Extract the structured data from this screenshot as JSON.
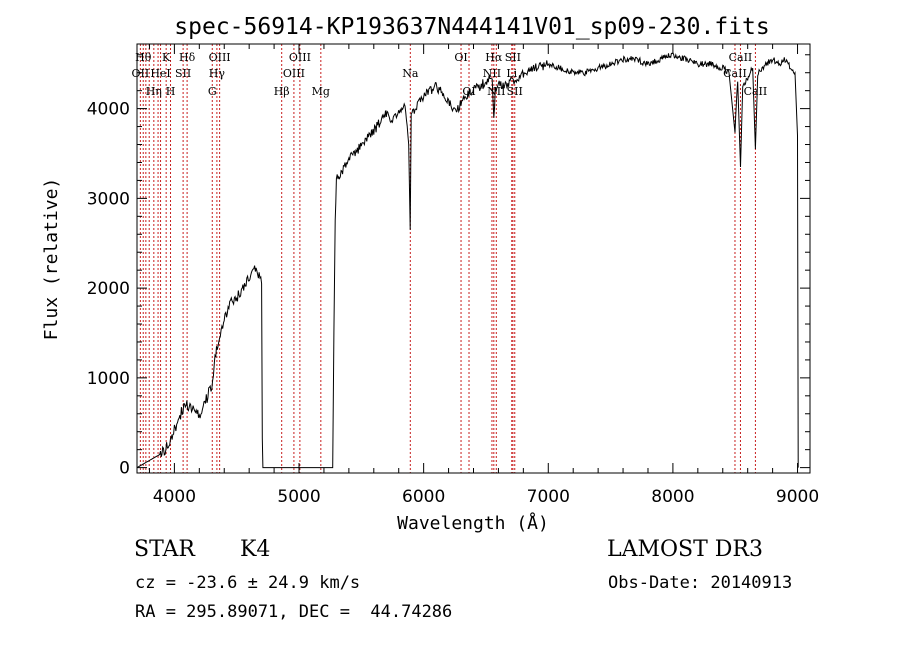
{
  "chart_data": {
    "type": "line",
    "title": "spec-56914-KP193637N444141V01_sp09-230.fits",
    "xlabel": "Wavelength (Å)",
    "ylabel": "Flux (relative)",
    "xlim": [
      3700,
      9100
    ],
    "ylim": [
      -60,
      4720
    ],
    "x_ticks": [
      4000,
      5000,
      6000,
      7000,
      8000,
      9000
    ],
    "y_ticks": [
      0,
      1000,
      2000,
      3000,
      4000
    ],
    "x_minor_step": 200,
    "y_minor_step": 200,
    "grid": false,
    "series": [
      {
        "line_color": "#000000",
        "x": [
          3700,
          3800,
          3900,
          3950,
          4000,
          4050,
          4100,
          4150,
          4200,
          4250,
          4300,
          4320,
          4350,
          4400,
          4450,
          4500,
          4550,
          4600,
          4650,
          4680,
          4700,
          4705,
          4710,
          5270,
          5280,
          5290,
          5300,
          5350,
          5400,
          5450,
          5500,
          5550,
          5600,
          5650,
          5700,
          5750,
          5800,
          5850,
          5880,
          5892,
          5900,
          5950,
          6000,
          6100,
          6200,
          6250,
          6300,
          6350,
          6400,
          6450,
          6500,
          6550,
          6563,
          6575,
          6600,
          6650,
          6700,
          6750,
          6800,
          6900,
          7000,
          7100,
          7200,
          7300,
          7400,
          7500,
          7600,
          7700,
          7800,
          7900,
          8000,
          8100,
          8200,
          8300,
          8400,
          8450,
          8498,
          8520,
          8542,
          8560,
          8600,
          8640,
          8662,
          8680,
          8750,
          8800,
          8850,
          8900,
          8950,
          8980,
          9000,
          9005
        ],
        "y": [
          0,
          80,
          160,
          260,
          420,
          600,
          700,
          650,
          560,
          750,
          900,
          1150,
          1400,
          1650,
          1850,
          1900,
          2000,
          2100,
          2200,
          2150,
          2050,
          300,
          0,
          0,
          1500,
          2700,
          3200,
          3300,
          3450,
          3500,
          3600,
          3700,
          3750,
          3850,
          3950,
          3850,
          3950,
          4050,
          3600,
          2650,
          3900,
          4050,
          4150,
          4250,
          4100,
          3950,
          4050,
          4150,
          4200,
          4250,
          4300,
          4350,
          3850,
          4200,
          4300,
          4250,
          4300,
          4350,
          4400,
          4450,
          4500,
          4450,
          4400,
          4400,
          4450,
          4500,
          4550,
          4550,
          4500,
          4550,
          4600,
          4550,
          4500,
          4500,
          4450,
          4400,
          3750,
          4300,
          3350,
          4250,
          4350,
          4450,
          3550,
          4400,
          4500,
          4550,
          4500,
          4550,
          4450,
          4400,
          3700,
          0
        ]
      }
    ],
    "line_markers": {
      "color": "#c81e1e",
      "lines": [
        {
          "wavelength": 3727,
          "label": "OII",
          "row": 2
        },
        {
          "wavelength": 3750,
          "label": "Hθ",
          "row": 1
        },
        {
          "wavelength": 3771,
          "label": "",
          "row": 0
        },
        {
          "wavelength": 3798,
          "label": "",
          "row": 0
        },
        {
          "wavelength": 3835,
          "label": "Hη",
          "row": 3
        },
        {
          "wavelength": 3869,
          "label": "",
          "row": 0
        },
        {
          "wavelength": 3889,
          "label": "HeI",
          "row": 2
        },
        {
          "wavelength": 3934,
          "label": "K",
          "row": 1
        },
        {
          "wavelength": 3969,
          "label": "H",
          "row": 3
        },
        {
          "wavelength": 4070,
          "label": "SII",
          "row": 2
        },
        {
          "wavelength": 4102,
          "label": "Hδ",
          "row": 1
        },
        {
          "wavelength": 4304,
          "label": "G",
          "row": 3
        },
        {
          "wavelength": 4341,
          "label": "Hγ",
          "row": 2
        },
        {
          "wavelength": 4363,
          "label": "OIII",
          "row": 1
        },
        {
          "wavelength": 4861,
          "label": "Hβ",
          "row": 3
        },
        {
          "wavelength": 4959,
          "label": "OIII",
          "row": 2
        },
        {
          "wavelength": 5007,
          "label": "OIII",
          "row": 1
        },
        {
          "wavelength": 5175,
          "label": "Mg",
          "row": 3
        },
        {
          "wavelength": 5893,
          "label": "Na",
          "row": 2
        },
        {
          "wavelength": 6300,
          "label": "OI",
          "row": 1
        },
        {
          "wavelength": 6364,
          "label": "OI",
          "row": 3
        },
        {
          "wavelength": 6548,
          "label": "NII",
          "row": 2
        },
        {
          "wavelength": 6563,
          "label": "Hα",
          "row": 1
        },
        {
          "wavelength": 6583,
          "label": "NII",
          "row": 3
        },
        {
          "wavelength": 6707,
          "label": "Li",
          "row": 2
        },
        {
          "wavelength": 6716,
          "label": "SII",
          "row": 1
        },
        {
          "wavelength": 6731,
          "label": "SII",
          "row": 3
        },
        {
          "wavelength": 8498,
          "label": "CaII",
          "row": 2
        },
        {
          "wavelength": 8542,
          "label": "CaII",
          "row": 1
        },
        {
          "wavelength": 8662,
          "label": "CaII",
          "row": 3
        }
      ]
    }
  },
  "info": {
    "object_class": "STAR",
    "subclass": "K4",
    "cz": "cz = -23.6 ± 24.9 km/s",
    "coords": "RA = 295.89071, DEC =  44.74286",
    "survey": "LAMOST DR3",
    "obs_date": "Obs-Date: 20140913"
  }
}
